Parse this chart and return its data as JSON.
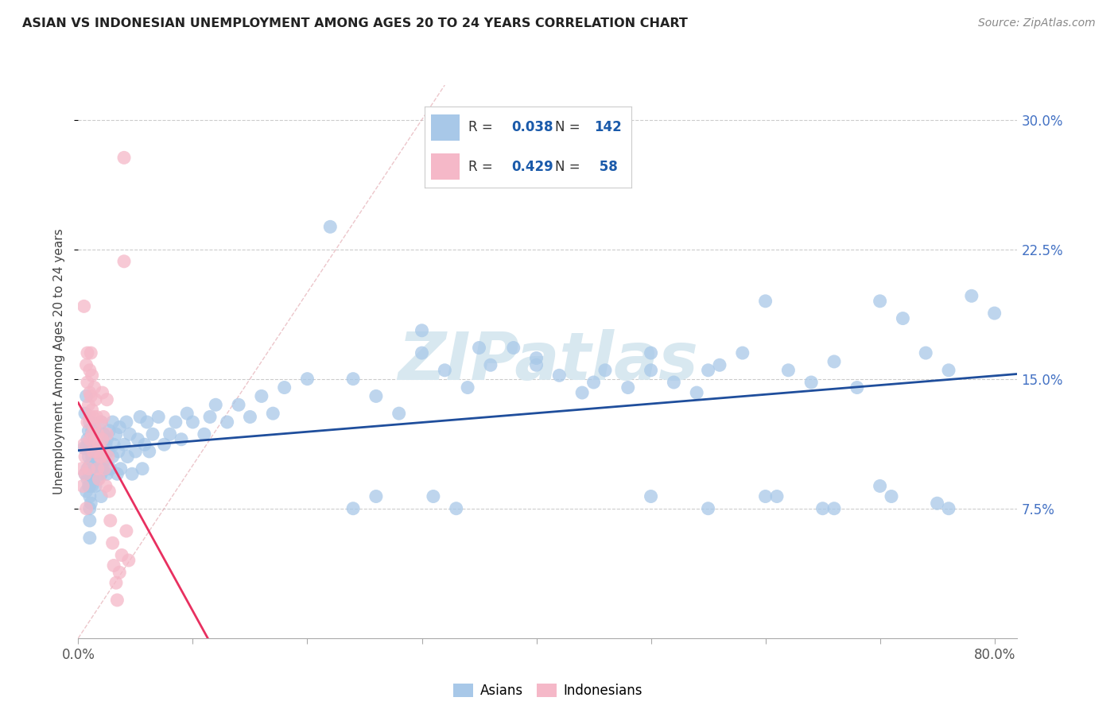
{
  "title": "ASIAN VS INDONESIAN UNEMPLOYMENT AMONG AGES 20 TO 24 YEARS CORRELATION CHART",
  "source": "Source: ZipAtlas.com",
  "xlim": [
    0.0,
    0.82
  ],
  "ylim": [
    0.0,
    0.32
  ],
  "ylabel": "Unemployment Among Ages 20 to 24 years",
  "legend_labels": [
    "Asians",
    "Indonesians"
  ],
  "asian_color": "#a8c8e8",
  "indonesian_color": "#f5b8c8",
  "asian_line_color": "#1f4e9c",
  "indonesian_line_color": "#e83060",
  "diagonal_color": "#d0b0b0",
  "R_asian": 0.038,
  "N_asian": 142,
  "R_indonesian": 0.429,
  "N_indonesian": 58,
  "legend_box_color": "#ddeeff",
  "legend_pink_color": "#ffccdd",
  "watermark_color": "#d8e8f0",
  "asian_scatter_x": [
    0.005,
    0.006,
    0.006,
    0.007,
    0.007,
    0.007,
    0.008,
    0.008,
    0.008,
    0.009,
    0.009,
    0.009,
    0.009,
    0.01,
    0.01,
    0.01,
    0.01,
    0.01,
    0.01,
    0.01,
    0.01,
    0.01,
    0.011,
    0.011,
    0.011,
    0.012,
    0.012,
    0.012,
    0.013,
    0.013,
    0.014,
    0.014,
    0.015,
    0.015,
    0.016,
    0.016,
    0.017,
    0.017,
    0.018,
    0.018,
    0.019,
    0.02,
    0.02,
    0.02,
    0.02,
    0.021,
    0.021,
    0.022,
    0.022,
    0.023,
    0.024,
    0.025,
    0.025,
    0.026,
    0.027,
    0.028,
    0.03,
    0.03,
    0.031,
    0.033,
    0.034,
    0.035,
    0.036,
    0.037,
    0.04,
    0.042,
    0.043,
    0.045,
    0.047,
    0.05,
    0.052,
    0.054,
    0.056,
    0.058,
    0.06,
    0.062,
    0.065,
    0.07,
    0.075,
    0.08,
    0.085,
    0.09,
    0.095,
    0.1,
    0.11,
    0.115,
    0.12,
    0.13,
    0.14,
    0.15,
    0.16,
    0.17,
    0.18,
    0.2,
    0.22,
    0.24,
    0.26,
    0.28,
    0.3,
    0.32,
    0.34,
    0.36,
    0.38,
    0.4,
    0.42,
    0.44,
    0.46,
    0.48,
    0.5,
    0.52,
    0.54,
    0.56,
    0.58,
    0.6,
    0.62,
    0.64,
    0.66,
    0.68,
    0.7,
    0.72,
    0.74,
    0.76,
    0.78,
    0.8,
    0.3,
    0.35,
    0.4,
    0.45,
    0.5,
    0.55,
    0.6,
    0.65,
    0.7,
    0.75,
    0.24,
    0.26,
    0.31,
    0.33,
    0.5,
    0.55,
    0.61,
    0.66,
    0.71,
    0.76
  ],
  "asian_scatter_y": [
    0.11,
    0.095,
    0.13,
    0.085,
    0.11,
    0.14,
    0.092,
    0.115,
    0.098,
    0.088,
    0.105,
    0.12,
    0.098,
    0.075,
    0.088,
    0.1,
    0.112,
    0.125,
    0.095,
    0.082,
    0.068,
    0.058,
    0.095,
    0.11,
    0.078,
    0.088,
    0.105,
    0.12,
    0.092,
    0.115,
    0.098,
    0.118,
    0.105,
    0.088,
    0.098,
    0.118,
    0.092,
    0.112,
    0.098,
    0.115,
    0.108,
    0.095,
    0.11,
    0.125,
    0.082,
    0.098,
    0.115,
    0.102,
    0.118,
    0.105,
    0.112,
    0.095,
    0.115,
    0.108,
    0.12,
    0.098,
    0.105,
    0.125,
    0.112,
    0.118,
    0.095,
    0.108,
    0.122,
    0.098,
    0.112,
    0.125,
    0.105,
    0.118,
    0.095,
    0.108,
    0.115,
    0.128,
    0.098,
    0.112,
    0.125,
    0.108,
    0.118,
    0.128,
    0.112,
    0.118,
    0.125,
    0.115,
    0.13,
    0.125,
    0.118,
    0.128,
    0.135,
    0.125,
    0.135,
    0.128,
    0.14,
    0.13,
    0.145,
    0.15,
    0.238,
    0.15,
    0.14,
    0.13,
    0.165,
    0.155,
    0.145,
    0.158,
    0.168,
    0.162,
    0.152,
    0.142,
    0.155,
    0.145,
    0.155,
    0.148,
    0.142,
    0.158,
    0.165,
    0.195,
    0.155,
    0.148,
    0.16,
    0.145,
    0.195,
    0.185,
    0.165,
    0.155,
    0.198,
    0.188,
    0.178,
    0.168,
    0.158,
    0.148,
    0.165,
    0.155,
    0.082,
    0.075,
    0.088,
    0.078,
    0.075,
    0.082,
    0.082,
    0.075,
    0.082,
    0.075,
    0.082,
    0.075,
    0.082,
    0.075
  ],
  "indonesian_scatter_x": [
    0.003,
    0.004,
    0.005,
    0.005,
    0.006,
    0.006,
    0.007,
    0.007,
    0.008,
    0.008,
    0.008,
    0.009,
    0.009,
    0.01,
    0.01,
    0.01,
    0.01,
    0.011,
    0.011,
    0.012,
    0.012,
    0.012,
    0.013,
    0.013,
    0.014,
    0.014,
    0.015,
    0.015,
    0.016,
    0.016,
    0.017,
    0.017,
    0.018,
    0.018,
    0.019,
    0.02,
    0.02,
    0.021,
    0.021,
    0.022,
    0.022,
    0.023,
    0.024,
    0.025,
    0.025,
    0.026,
    0.027,
    0.028,
    0.03,
    0.031,
    0.033,
    0.034,
    0.036,
    0.038,
    0.04,
    0.04,
    0.042,
    0.044
  ],
  "indonesian_scatter_y": [
    0.098,
    0.088,
    0.192,
    0.112,
    0.105,
    0.095,
    0.158,
    0.075,
    0.165,
    0.148,
    0.125,
    0.135,
    0.098,
    0.155,
    0.142,
    0.128,
    0.115,
    0.165,
    0.14,
    0.152,
    0.132,
    0.118,
    0.128,
    0.108,
    0.145,
    0.122,
    0.138,
    0.115,
    0.128,
    0.108,
    0.118,
    0.098,
    0.112,
    0.092,
    0.105,
    0.125,
    0.105,
    0.142,
    0.115,
    0.128,
    0.108,
    0.098,
    0.088,
    0.138,
    0.118,
    0.105,
    0.085,
    0.068,
    0.055,
    0.042,
    0.032,
    0.022,
    0.038,
    0.048,
    0.278,
    0.218,
    0.062,
    0.045
  ]
}
